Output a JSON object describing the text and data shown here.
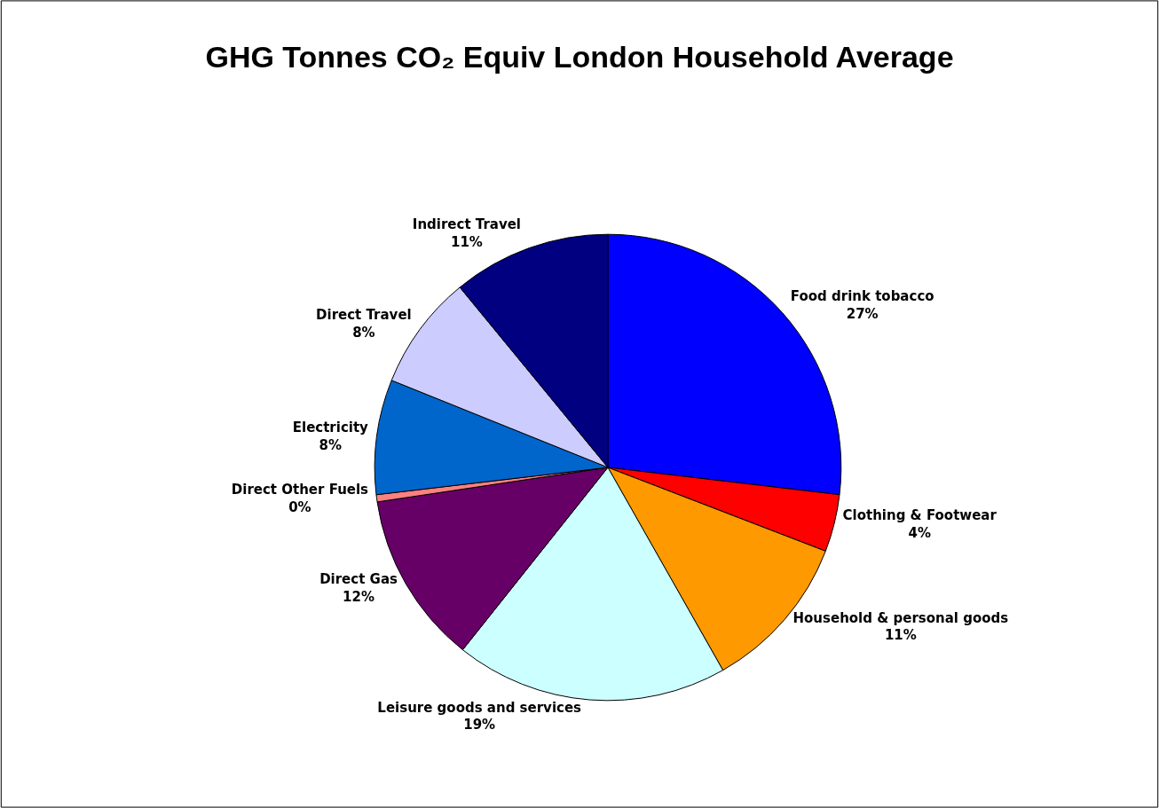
{
  "chart_data": {
    "type": "pie",
    "title": "GHG Tonnes CO₂ Equiv London Household Average",
    "categories": [
      "Food drink tobacco",
      "Clothing & Footwear",
      "Household & personal goods",
      "Leisure goods and services",
      "Direct Gas",
      "Direct Other Fuels",
      "Electricity",
      "Direct Travel",
      "Indirect Travel"
    ],
    "values": [
      27,
      4,
      11,
      19,
      12,
      0.5,
      8,
      8,
      11
    ],
    "value_labels": [
      "27%",
      "4%",
      "11%",
      "19%",
      "12%",
      "0%",
      "8%",
      "8%",
      "11%"
    ],
    "colors": [
      "#0000ff",
      "#ff0000",
      "#ff9900",
      "#ccffff",
      "#660066",
      "#ff8080",
      "#0066cc",
      "#ccccff",
      "#000080"
    ],
    "legend": false
  }
}
